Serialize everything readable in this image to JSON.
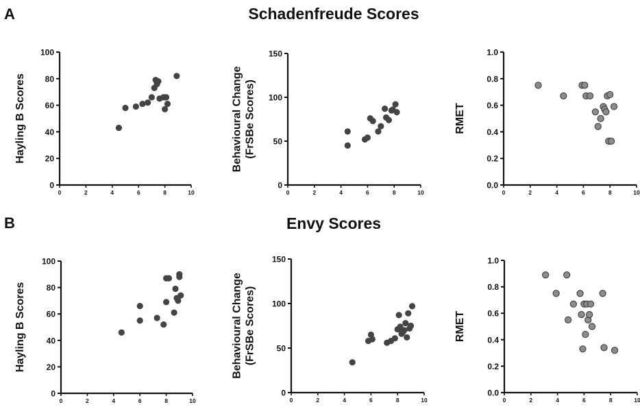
{
  "panels": {
    "A": {
      "letter": "A",
      "title": "Schadenfreude Scores"
    },
    "B": {
      "letter": "B",
      "title": "Envy Scores"
    }
  },
  "colors": {
    "marker_dark": "#444444",
    "marker_grey": "#8c8c8c",
    "axis": "#111111"
  },
  "chart_data": [
    {
      "id": "A1",
      "type": "scatter",
      "row": "A",
      "ylabel": [
        "Hayling B Scores"
      ],
      "xlim": [
        0,
        10
      ],
      "ylim": [
        0,
        100
      ],
      "xticks": [
        0,
        2,
        4,
        6,
        8,
        10
      ],
      "yticks": [
        0,
        20,
        40,
        60,
        80,
        100
      ],
      "ydecimals": 0,
      "marker": "dark",
      "x": [
        4.5,
        5.0,
        5.8,
        6.3,
        6.7,
        7.0,
        7.2,
        7.3,
        7.4,
        7.5,
        7.6,
        7.9,
        8.0,
        8.1,
        8.2,
        8.9
      ],
      "y": [
        43,
        58,
        59,
        61,
        62,
        66,
        73,
        79,
        76,
        78,
        65,
        66,
        57,
        66,
        61,
        82
      ]
    },
    {
      "id": "A2",
      "type": "scatter",
      "row": "A",
      "ylabel": [
        "Behavioural Change",
        "(FrSBe Scores)"
      ],
      "xlim": [
        0,
        10
      ],
      "ylim": [
        0,
        150
      ],
      "xticks": [
        0,
        2,
        4,
        6,
        8,
        10
      ],
      "yticks": [
        0,
        50,
        100,
        150
      ],
      "ydecimals": 0,
      "marker": "dark",
      "x": [
        4.5,
        4.5,
        5.8,
        6.0,
        6.2,
        6.4,
        6.8,
        7.0,
        7.3,
        7.4,
        7.6,
        7.8,
        7.9,
        8.1,
        8.2
      ],
      "y": [
        61,
        45,
        52,
        54,
        76,
        73,
        61,
        67,
        87,
        77,
        74,
        85,
        86,
        92,
        83
      ]
    },
    {
      "id": "A3",
      "type": "scatter",
      "row": "A",
      "ylabel": [
        "RMET"
      ],
      "xlim": [
        0,
        10
      ],
      "ylim": [
        0.0,
        1.0
      ],
      "xticks": [
        0,
        2,
        4,
        6,
        8,
        10
      ],
      "yticks": [
        0.0,
        0.2,
        0.4,
        0.6,
        0.8,
        1.0
      ],
      "ydecimals": 1,
      "marker": "grey",
      "x": [
        2.6,
        4.5,
        5.9,
        6.1,
        6.2,
        6.5,
        6.9,
        7.1,
        7.3,
        7.5,
        7.6,
        7.7,
        7.8,
        7.9,
        8.0,
        8.1,
        8.3
      ],
      "y": [
        0.75,
        0.67,
        0.75,
        0.75,
        0.67,
        0.67,
        0.55,
        0.44,
        0.5,
        0.59,
        0.57,
        0.55,
        0.67,
        0.33,
        0.68,
        0.33,
        0.59
      ]
    },
    {
      "id": "B1",
      "type": "scatter",
      "row": "B",
      "ylabel": [
        "Hayling B Scores"
      ],
      "xlim": [
        0,
        10
      ],
      "ylim": [
        0,
        100
      ],
      "xticks": [
        0,
        2,
        4,
        6,
        8,
        10
      ],
      "yticks": [
        0,
        20,
        40,
        60,
        80,
        100
      ],
      "ydecimals": 0,
      "marker": "dark",
      "x": [
        4.6,
        6.0,
        6.0,
        7.3,
        7.8,
        8.0,
        8.0,
        8.2,
        8.6,
        8.7,
        8.8,
        8.9,
        9.0,
        9.0,
        9.1
      ],
      "y": [
        46,
        55,
        66,
        57,
        52,
        69,
        87,
        87,
        61,
        79,
        72,
        70,
        90,
        88,
        74
      ]
    },
    {
      "id": "B2",
      "type": "scatter",
      "row": "B",
      "ylabel": [
        "Behavioural Change",
        "(FrSBe Scores)"
      ],
      "xlim": [
        0,
        10
      ],
      "ylim": [
        0,
        150
      ],
      "xticks": [
        0,
        2,
        4,
        6,
        8,
        10
      ],
      "yticks": [
        0,
        50,
        100,
        150
      ],
      "ydecimals": 0,
      "marker": "dark",
      "x": [
        4.6,
        5.8,
        6.0,
        6.1,
        7.2,
        7.5,
        7.8,
        8.0,
        8.1,
        8.2,
        8.3,
        8.4,
        8.5,
        8.6,
        8.7,
        8.8,
        8.9,
        9.0,
        9.1
      ],
      "y": [
        34,
        58,
        65,
        60,
        56,
        58,
        61,
        71,
        87,
        74,
        66,
        68,
        70,
        78,
        62,
        89,
        72,
        75,
        97
      ]
    },
    {
      "id": "B3",
      "type": "scatter",
      "row": "B",
      "ylabel": [
        "RMET"
      ],
      "xlim": [
        0,
        10
      ],
      "ylim": [
        0.0,
        1.0
      ],
      "xticks": [
        0,
        2,
        4,
        6,
        8,
        10
      ],
      "yticks": [
        0.0,
        0.2,
        0.4,
        0.6,
        0.8,
        1.0
      ],
      "ydecimals": 1,
      "marker": "grey",
      "x": [
        3.1,
        3.9,
        4.7,
        4.8,
        5.2,
        5.7,
        5.8,
        5.9,
        6.0,
        6.1,
        6.2,
        6.3,
        6.4,
        6.5,
        6.6,
        7.4,
        7.5,
        8.3
      ],
      "y": [
        0.89,
        0.75,
        0.89,
        0.55,
        0.67,
        0.75,
        0.59,
        0.33,
        0.67,
        0.44,
        0.67,
        0.55,
        0.59,
        0.67,
        0.5,
        0.75,
        0.34,
        0.32
      ]
    }
  ]
}
